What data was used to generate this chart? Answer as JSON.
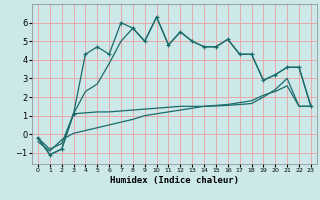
{
  "xlabel": "Humidex (Indice chaleur)",
  "bg_color": "#cce8e8",
  "grid_color": "#e8aaaa",
  "line_color": "#1a6b6b",
  "xlim": [
    -0.5,
    23.5
  ],
  "ylim": [
    -1.6,
    7.0
  ],
  "yticks": [
    -1,
    0,
    1,
    2,
    3,
    4,
    5,
    6
  ],
  "xticks": [
    0,
    1,
    2,
    3,
    4,
    5,
    6,
    7,
    8,
    9,
    10,
    11,
    12,
    13,
    14,
    15,
    16,
    17,
    18,
    19,
    20,
    21,
    22,
    23
  ],
  "line1_x": [
    0,
    1,
    2,
    3,
    4,
    5,
    6,
    7,
    8,
    9,
    10,
    11,
    12,
    13,
    14,
    15,
    16,
    17,
    18,
    19,
    20,
    21,
    22,
    23
  ],
  "line1_y": [
    -0.2,
    -1.1,
    -0.8,
    1.1,
    4.3,
    4.7,
    4.3,
    6.0,
    5.7,
    5.0,
    6.3,
    4.8,
    5.5,
    5.0,
    4.7,
    4.7,
    5.1,
    4.3,
    4.3,
    2.9,
    3.2,
    3.6,
    3.6,
    1.5
  ],
  "line2_x": [
    0,
    1,
    2,
    3,
    4,
    5,
    6,
    7,
    8,
    9,
    10,
    11,
    12,
    13,
    14,
    15,
    16,
    17,
    18,
    19,
    20,
    21,
    22,
    23
  ],
  "line2_y": [
    -0.2,
    -1.1,
    -0.8,
    1.1,
    2.3,
    2.7,
    3.8,
    5.0,
    5.7,
    5.0,
    6.3,
    4.8,
    5.5,
    5.0,
    4.7,
    4.7,
    5.1,
    4.3,
    4.3,
    2.9,
    3.2,
    3.6,
    3.6,
    1.5
  ],
  "line3_x": [
    0,
    1,
    2,
    3,
    4,
    5,
    6,
    7,
    8,
    9,
    10,
    11,
    12,
    13,
    14,
    15,
    16,
    17,
    18,
    19,
    20,
    21,
    22,
    23
  ],
  "line3_y": [
    -0.2,
    -0.8,
    -0.5,
    1.1,
    1.15,
    1.2,
    1.2,
    1.25,
    1.3,
    1.35,
    1.4,
    1.45,
    1.5,
    1.5,
    1.5,
    1.52,
    1.55,
    1.6,
    1.65,
    2.0,
    2.4,
    3.0,
    1.5,
    1.5
  ],
  "line4_x": [
    0,
    1,
    2,
    3,
    4,
    5,
    6,
    7,
    8,
    9,
    10,
    11,
    12,
    13,
    14,
    15,
    16,
    17,
    18,
    19,
    20,
    21,
    22,
    23
  ],
  "line4_y": [
    -0.4,
    -0.9,
    -0.3,
    0.05,
    0.2,
    0.35,
    0.5,
    0.65,
    0.8,
    1.0,
    1.1,
    1.2,
    1.3,
    1.4,
    1.5,
    1.55,
    1.6,
    1.7,
    1.8,
    2.1,
    2.3,
    2.6,
    1.5,
    1.5
  ]
}
